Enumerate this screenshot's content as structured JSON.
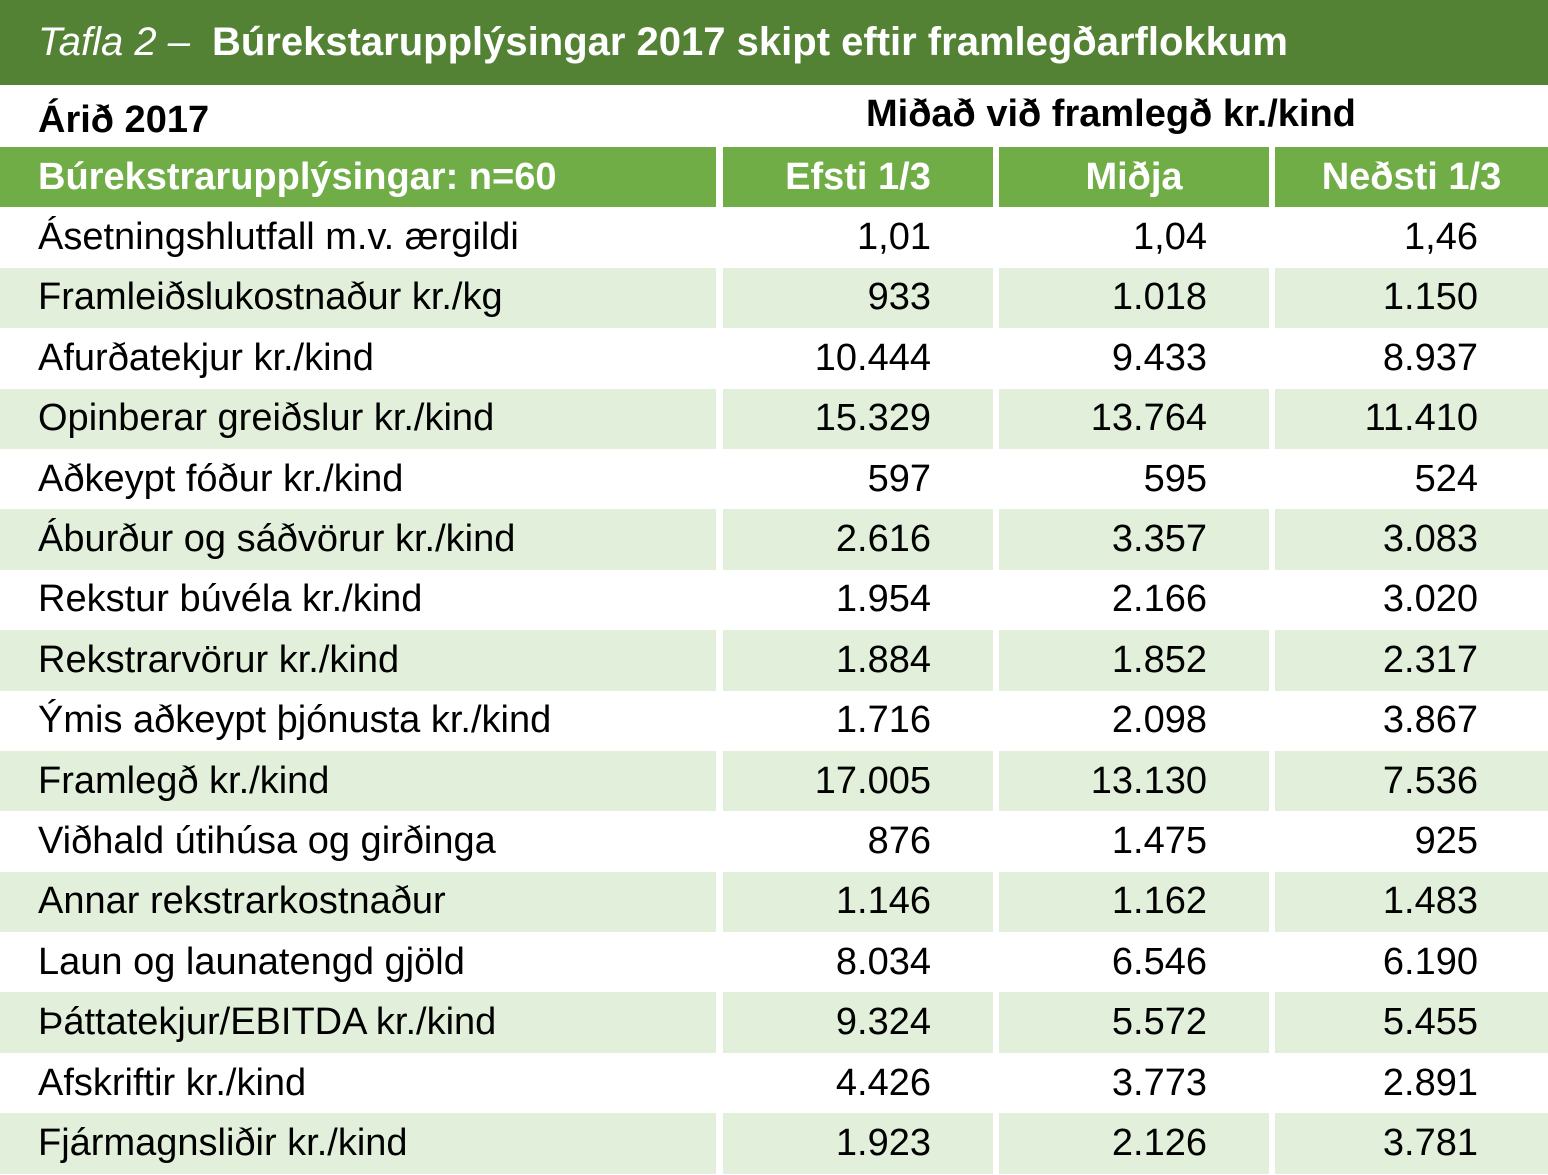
{
  "title": {
    "prefix": "Tafla 2 –",
    "text": "Búrekstarupplýsingar 2017 skipt eftir framlegðarflokkum"
  },
  "subheader": {
    "year": "Árið 2017",
    "measure": "Miðað við framlegð kr./kind"
  },
  "table": {
    "headers": [
      "Búrekstrarupplýsingar: n=60",
      "Efsti 1/3",
      "Miðja",
      "Neðsti 1/3"
    ],
    "rows": [
      [
        "Ásetningshlutfall m.v. ærgildi",
        "1,01",
        "1,04",
        "1,46"
      ],
      [
        "Framleiðslukostnaður kr./kg",
        "933",
        "1.018",
        "1.150"
      ],
      [
        "Afurðatekjur kr./kind",
        "10.444",
        "9.433",
        "8.937"
      ],
      [
        "Opinberar greiðslur kr./kind",
        "15.329",
        "13.764",
        "11.410"
      ],
      [
        "Aðkeypt fóður kr./kind",
        "597",
        "595",
        "524"
      ],
      [
        "Áburður og sáðvörur kr./kind",
        "2.616",
        "3.357",
        "3.083"
      ],
      [
        "Rekstur búvéla kr./kind",
        "1.954",
        "2.166",
        "3.020"
      ],
      [
        "Rekstrarvörur kr./kind",
        "1.884",
        "1.852",
        "2.317"
      ],
      [
        "Ýmis aðkeypt þjónusta kr./kind",
        "1.716",
        "2.098",
        "3.867"
      ],
      [
        "Framlegð kr./kind",
        "17.005",
        "13.130",
        "7.536"
      ],
      [
        "Viðhald útihúsa og girðinga",
        "876",
        "1.475",
        "925"
      ],
      [
        "Annar rekstrarkostnaður",
        "1.146",
        "1.162",
        "1.483"
      ],
      [
        "Laun og launatengd gjöld",
        "8.034",
        "6.546",
        "6.190"
      ],
      [
        "Þáttatekjur/EBITDA kr./kind",
        "9.324",
        "5.572",
        "5.455"
      ],
      [
        "Afskriftir kr./kind",
        "4.426",
        "3.773",
        "2.891"
      ],
      [
        "Fjármagnsliðir kr./kind",
        "1.923",
        "2.126",
        "3.781"
      ]
    ]
  },
  "colors": {
    "title_bg": "#548235",
    "header_bg": "#70ad47",
    "stripe_bg": "#e2efda"
  }
}
